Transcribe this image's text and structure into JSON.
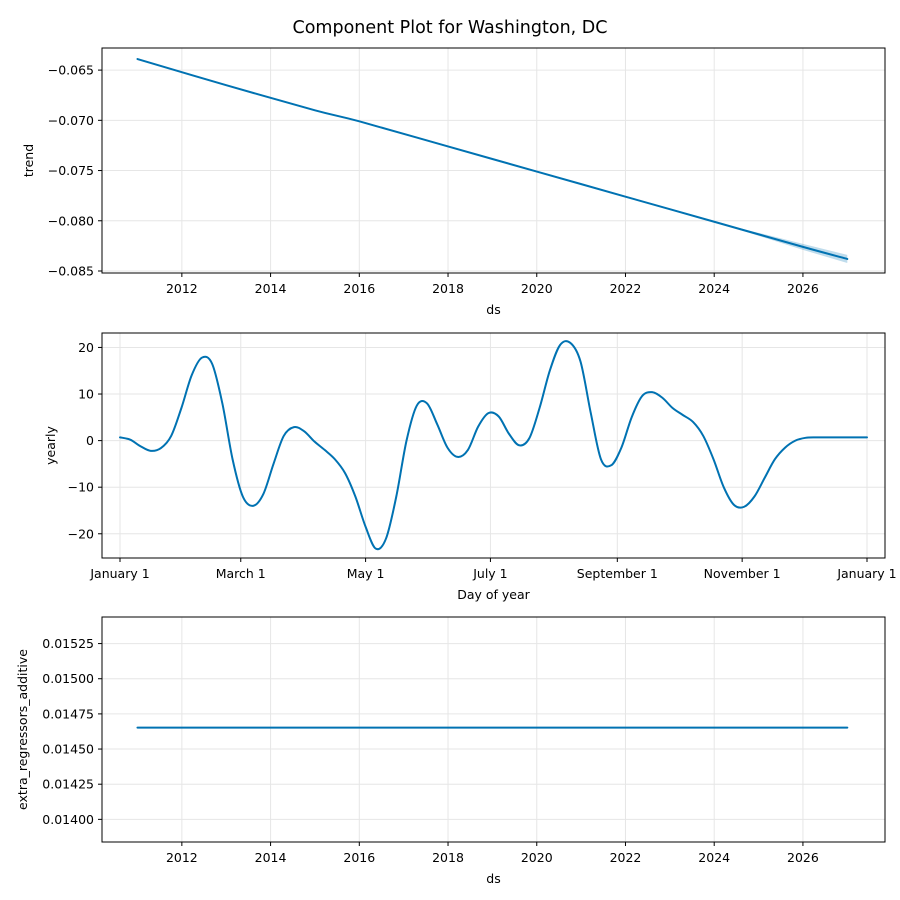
{
  "figure": {
    "title": "Component Plot for Washington, DC",
    "line_color": "#0072B2",
    "band_color": "#0072B2",
    "grid_color": "#e6e6e6"
  },
  "chart_data": [
    {
      "type": "line",
      "panel": "trend",
      "xlabel": "ds",
      "ylabel": "trend",
      "xlim": [
        2010.2,
        2027.85
      ],
      "ylim": [
        -0.0852,
        -0.0628
      ],
      "xticks": [
        2012,
        2014,
        2016,
        2018,
        2020,
        2022,
        2024,
        2026
      ],
      "xtick_labels": [
        "2012",
        "2014",
        "2016",
        "2018",
        "2020",
        "2022",
        "2024",
        "2026"
      ],
      "yticks": [
        -0.085,
        -0.08,
        -0.075,
        -0.07,
        -0.065
      ],
      "ytick_labels": [
        "−0.085",
        "−0.080",
        "−0.075",
        "−0.070",
        "−0.065"
      ],
      "grid": true,
      "series": [
        {
          "x": [
            2011.0,
            2013.0,
            2015.0,
            2016.0,
            2018.0,
            2020.0,
            2022.0,
            2024.0,
            2026.0,
            2027.0
          ],
          "y": [
            -0.0639,
            -0.0665,
            -0.069,
            -0.0701,
            -0.0726,
            -0.0751,
            -0.0776,
            -0.0801,
            -0.0826,
            -0.0838
          ],
          "band_x": [
            2024.0,
            2025.0,
            2026.0,
            2027.0
          ],
          "band_lower": [
            -0.0801,
            -0.0815,
            -0.0829,
            -0.0842
          ],
          "band_upper": [
            -0.0801,
            -0.0812,
            -0.0823,
            -0.0834
          ]
        }
      ]
    },
    {
      "type": "line",
      "panel": "yearly",
      "xlabel": "Day of year",
      "ylabel": "yearly",
      "xlim": [
        -8.8,
        373.8
      ],
      "ylim": [
        -25.2,
        23.1
      ],
      "xticks": [
        0,
        59,
        120,
        181,
        243,
        304,
        365
      ],
      "xtick_labels": [
        "January 1",
        "March 1",
        "May 1",
        "July 1",
        "September 1",
        "November 1",
        "January 1"
      ],
      "yticks": [
        -20,
        -10,
        0,
        10,
        20
      ],
      "ytick_labels": [
        "−20",
        "−10",
        "0",
        "10",
        "20"
      ],
      "grid": true,
      "series": [
        {
          "x": [
            0,
            5,
            10,
            15,
            20,
            25,
            30,
            35,
            40,
            45,
            50,
            55,
            60,
            65,
            70,
            75,
            80,
            85,
            90,
            95,
            100,
            105,
            110,
            115,
            120,
            125,
            130,
            135,
            140,
            145,
            150,
            155,
            160,
            165,
            170,
            175,
            180,
            185,
            190,
            195,
            200,
            205,
            210,
            215,
            220,
            225,
            230,
            235,
            240,
            245,
            250,
            255,
            260,
            265,
            270,
            275,
            280,
            285,
            290,
            295,
            300,
            305,
            310,
            315,
            320,
            325,
            330,
            335,
            340,
            345,
            350,
            355,
            360,
            365
          ],
          "y": [
            0.7,
            0.2,
            -1.2,
            -2.2,
            -1.6,
            1.0,
            7.0,
            14.0,
            17.8,
            16.5,
            8.0,
            -4.0,
            -12.0,
            -14.0,
            -11.5,
            -5.0,
            1.0,
            2.9,
            2.0,
            -0.2,
            -2.0,
            -4.0,
            -7.0,
            -12.0,
            -18.5,
            -23.2,
            -21.0,
            -12.0,
            0.0,
            7.5,
            8.0,
            3.5,
            -1.5,
            -3.5,
            -2.0,
            3.0,
            5.9,
            5.2,
            1.5,
            -1.0,
            0.5,
            7.0,
            15.0,
            20.5,
            21.0,
            17.0,
            6.0,
            -4.0,
            -5.3,
            -1.5,
            5.0,
            9.5,
            10.4,
            9.2,
            7.0,
            5.5,
            4.0,
            1.0,
            -4.0,
            -10.0,
            -13.8,
            -14.2,
            -12.0,
            -8.0,
            -4.0,
            -1.5,
            0.0,
            0.6,
            0.7,
            0.7,
            0.7,
            0.7,
            0.7,
            0.7
          ]
        }
      ]
    },
    {
      "type": "line",
      "panel": "extra_regressors_additive",
      "xlabel": "ds",
      "ylabel": "extra_regressors_additive",
      "xlim": [
        2010.2,
        2027.85
      ],
      "ylim": [
        0.013839,
        0.015439
      ],
      "xticks": [
        2012,
        2014,
        2016,
        2018,
        2020,
        2022,
        2024,
        2026
      ],
      "xtick_labels": [
        "2012",
        "2014",
        "2016",
        "2018",
        "2020",
        "2022",
        "2024",
        "2026"
      ],
      "yticks": [
        0.014,
        0.01425,
        0.0145,
        0.01475,
        0.015,
        0.01525
      ],
      "ytick_labels": [
        "0.01400",
        "0.01425",
        "0.01450",
        "0.01475",
        "0.01500",
        "0.01525"
      ],
      "grid": true,
      "series": [
        {
          "x": [
            2011.0,
            2027.0
          ],
          "y": [
            0.014652,
            0.014652
          ]
        }
      ]
    }
  ]
}
